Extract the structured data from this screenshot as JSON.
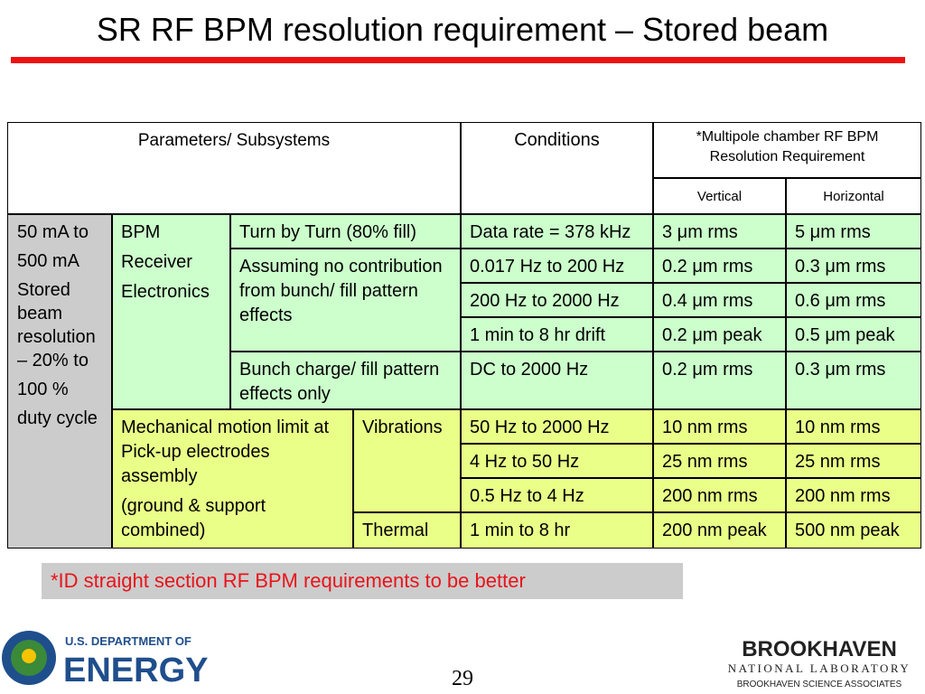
{
  "title": "SR RF BPM resolution requirement – Stored beam",
  "table": {
    "header": {
      "parameters": "Parameters/ Subsystems",
      "conditions": "Conditions",
      "requirement": "*Multipole chamber  RF BPM Resolution Requirement",
      "vertical": "Vertical",
      "horizontal": "Horizontal"
    },
    "beam": [
      "50 mA  to",
      "500 mA",
      "Stored beam resolution – 20% to",
      "100 %",
      "duty cycle"
    ],
    "bpm": [
      "BPM",
      "Receiver",
      "Electronics"
    ],
    "bpm_items": [
      "Turn by Turn (80% fill)",
      "Assuming no contribution from bunch/ fill pattern effects",
      "Bunch charge/ fill pattern effects only"
    ],
    "mechanical": [
      "Mechanical  motion limit at  Pick-up electrodes assembly",
      "(ground & support combined)"
    ],
    "mechanical_items": [
      "Vibrations",
      "Thermal"
    ],
    "rows": [
      [
        "Data rate = 378 kHz",
        "3 μm rms",
        "5 μm rms"
      ],
      [
        "0.017 Hz to 200 Hz",
        "0.2 μm rms",
        "0.3 μm rms"
      ],
      [
        "200 Hz to  2000 Hz",
        "0.4 μm rms",
        "0.6 μm rms"
      ],
      [
        "1 min to 8 hr drift",
        "0.2 μm peak",
        "0.5 μm peak"
      ],
      [
        "DC to 2000 Hz",
        "0.2 μm rms",
        "0.3 μm rms"
      ],
      [
        "50 Hz to 2000 Hz",
        "10 nm rms",
        "10 nm rms"
      ],
      [
        "4 Hz to 50 Hz",
        "25 nm rms",
        "25 nm rms"
      ],
      [
        "0.5 Hz to 4 Hz",
        "200 nm rms",
        "200 nm rms"
      ],
      [
        "1 min to  8 hr",
        "200 nm peak",
        "500 nm peak"
      ]
    ]
  },
  "note": "*ID straight section RF BPM requirements to be better",
  "page_number": "29",
  "footer": {
    "doe_top": "U.S. DEPARTMENT OF",
    "doe_main": "ENERGY",
    "bnl_main": "BROOKHAVEN",
    "bnl_sub": "NATIONAL LABORATORY",
    "bnl_assoc": "BROOKHAVEN SCIENCE ASSOCIATES"
  }
}
